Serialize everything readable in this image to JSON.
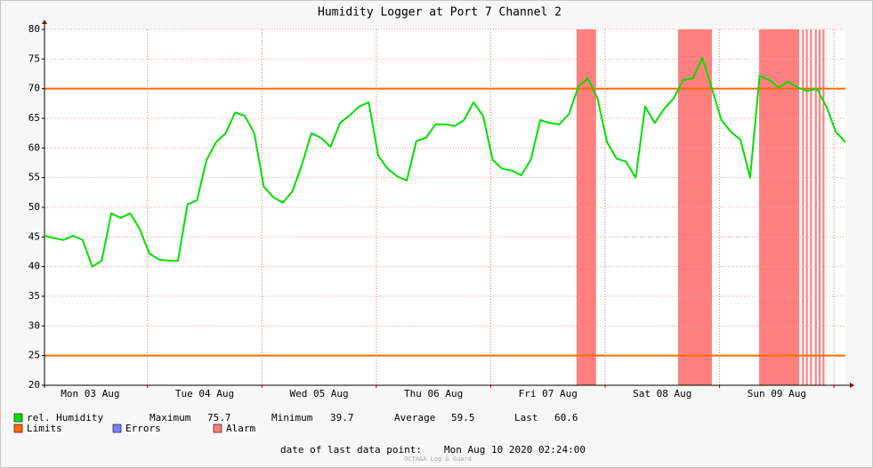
{
  "chart_data": {
    "type": "line",
    "title": "Humidity Logger at Port 7 Channel 2",
    "x": [
      0,
      2,
      4,
      6,
      8,
      10,
      12,
      14,
      16,
      18,
      20,
      22,
      24,
      26,
      28,
      30,
      32,
      34,
      36,
      38,
      40,
      42,
      44,
      46,
      48,
      50,
      52,
      54,
      56,
      58,
      60,
      62,
      64,
      66,
      68,
      70,
      72,
      74,
      76,
      78,
      80,
      82,
      84,
      86,
      88,
      90,
      92,
      94,
      96,
      98,
      100,
      102,
      104,
      106,
      108,
      110,
      112,
      114,
      116,
      118,
      120,
      122,
      124,
      126,
      128,
      130,
      132,
      134,
      136,
      138,
      140,
      142,
      144,
      146,
      148,
      150,
      152,
      154,
      156,
      158,
      160,
      162,
      164,
      166,
      168
    ],
    "series": [
      {
        "name": "rel. Humidity",
        "color": "#00e000",
        "values": [
          45.2,
          44.8,
          44.5,
          45.2,
          44.5,
          40.0,
          41.0,
          49.0,
          48.2,
          49.0,
          46.3,
          42.2,
          41.2,
          41.0,
          41.0,
          50.5,
          51.2,
          58.0,
          61.0,
          62.5,
          66.0,
          65.4,
          62.5,
          53.5,
          51.7,
          50.8,
          52.7,
          57.2,
          62.5,
          61.7,
          60.2,
          64.2,
          65.5,
          67.0,
          67.7,
          58.7,
          56.5,
          55.2,
          54.5,
          61.2,
          61.7,
          64.0,
          64.0,
          63.7,
          64.7,
          67.7,
          65.4,
          58.0,
          56.5,
          56.2,
          55.4,
          58.0,
          64.7,
          64.2,
          64.0,
          65.7,
          70.4,
          71.7,
          68.4,
          61.0,
          58.2,
          57.7,
          55.0,
          67.0,
          64.2,
          66.6,
          68.4,
          71.5,
          71.7,
          75.2,
          70.0,
          64.7,
          62.7,
          61.4,
          55.0,
          72.2,
          71.5,
          70.2,
          71.2,
          70.2,
          69.6,
          70.0,
          67.0,
          62.7,
          61.0
        ]
      }
    ],
    "xlim": [
      0,
      168
    ],
    "xticks": [
      {
        "value": 9.6,
        "label": "Mon 03 Aug"
      },
      {
        "value": 33.6,
        "label": "Tue 04 Aug"
      },
      {
        "value": 57.6,
        "label": "Wed 05 Aug"
      },
      {
        "value": 81.6,
        "label": "Thu 06 Aug"
      },
      {
        "value": 105.6,
        "label": "Fri 07 Aug"
      },
      {
        "value": 129.6,
        "label": "Sat 08 Aug"
      },
      {
        "value": 153.6,
        "label": "Sun 09 Aug"
      }
    ],
    "xgrid": [
      21.6,
      45.6,
      69.6,
      93.6,
      117.6,
      141.6,
      165.6
    ],
    "ylim": [
      20,
      80
    ],
    "yticks": [
      20,
      25,
      30,
      35,
      40,
      45,
      50,
      55,
      60,
      65,
      70,
      75,
      80
    ],
    "grid": true,
    "limits": [
      25,
      70
    ],
    "limits_color": "#ff6a00",
    "alarms": [
      [
        111.6,
        115.7
      ],
      [
        132.9,
        140.0
      ],
      [
        149.9,
        158.3
      ],
      [
        158.9,
        159.3
      ],
      [
        159.7,
        160.1
      ],
      [
        160.6,
        161.0
      ],
      [
        161.6,
        162.0
      ],
      [
        162.4,
        162.8
      ],
      [
        163.2,
        163.6
      ]
    ],
    "alarm_color": "#ff7f7f",
    "stats": [
      {
        "label": "Maximum",
        "value": 75.7
      },
      {
        "label": "Minimum",
        "value": 39.7
      },
      {
        "label": "Average",
        "value": 59.5
      },
      {
        "label": "Last",
        "value": 60.6
      }
    ],
    "legend": [
      {
        "name": "Limits",
        "color": "#ff6a00"
      },
      {
        "name": "Errors",
        "color": "#7f7fff"
      },
      {
        "name": "Alarm",
        "color": "#ff7f7f"
      }
    ],
    "footer": {
      "label": "date of last data point:",
      "date": "Mon Aug 10 2020 02:24:00"
    },
    "watermark": "OCTA&A Log & Guard"
  }
}
